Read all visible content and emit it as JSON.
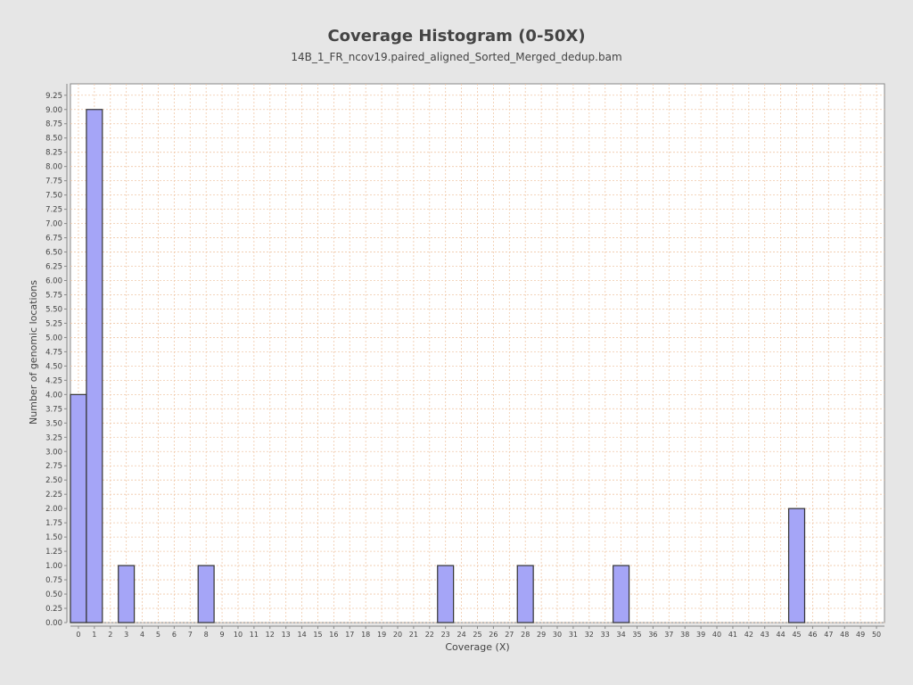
{
  "chart_data": {
    "type": "bar",
    "title": "Coverage Histogram (0-50X)",
    "subtitle": "14B_1_FR_ncov19.paired_aligned_Sorted_Merged_dedup.bam",
    "xlabel": "Coverage (X)",
    "ylabel": "Number of genomic locations",
    "x_ticks": [
      0,
      1,
      2,
      3,
      4,
      5,
      6,
      7,
      8,
      9,
      10,
      11,
      12,
      13,
      14,
      15,
      16,
      17,
      18,
      19,
      20,
      21,
      22,
      23,
      24,
      25,
      26,
      27,
      28,
      29,
      30,
      31,
      32,
      33,
      34,
      35,
      36,
      37,
      38,
      39,
      40,
      41,
      42,
      43,
      44,
      45,
      46,
      47,
      48,
      49,
      50
    ],
    "y_ticks": [
      "0.00",
      "0.25",
      "0.50",
      "0.75",
      "1.00",
      "1.25",
      "1.50",
      "1.75",
      "2.00",
      "2.25",
      "2.50",
      "2.75",
      "3.00",
      "3.25",
      "3.50",
      "3.75",
      "4.00",
      "4.25",
      "4.50",
      "4.75",
      "5.00",
      "5.25",
      "5.50",
      "5.75",
      "6.00",
      "6.25",
      "6.50",
      "6.75",
      "7.00",
      "7.25",
      "7.50",
      "7.75",
      "8.00",
      "8.25",
      "8.50",
      "8.75",
      "9.00",
      "9.25"
    ],
    "xlim": [
      0,
      51
    ],
    "ylim": [
      0,
      9.45
    ],
    "bars": [
      {
        "x": 0,
        "value": 4
      },
      {
        "x": 1,
        "value": 9
      },
      {
        "x": 3,
        "value": 1
      },
      {
        "x": 8,
        "value": 1
      },
      {
        "x": 23,
        "value": 1
      },
      {
        "x": 28,
        "value": 1
      },
      {
        "x": 34,
        "value": 1
      },
      {
        "x": 45,
        "value": 2
      }
    ],
    "grid": true,
    "colors": {
      "bar_fill": "#a5a5f7",
      "bar_stroke": "#333333",
      "grid": "#f0c8a8",
      "plot_bg": "#ffffff",
      "page_bg": "#e6e6e6"
    }
  }
}
